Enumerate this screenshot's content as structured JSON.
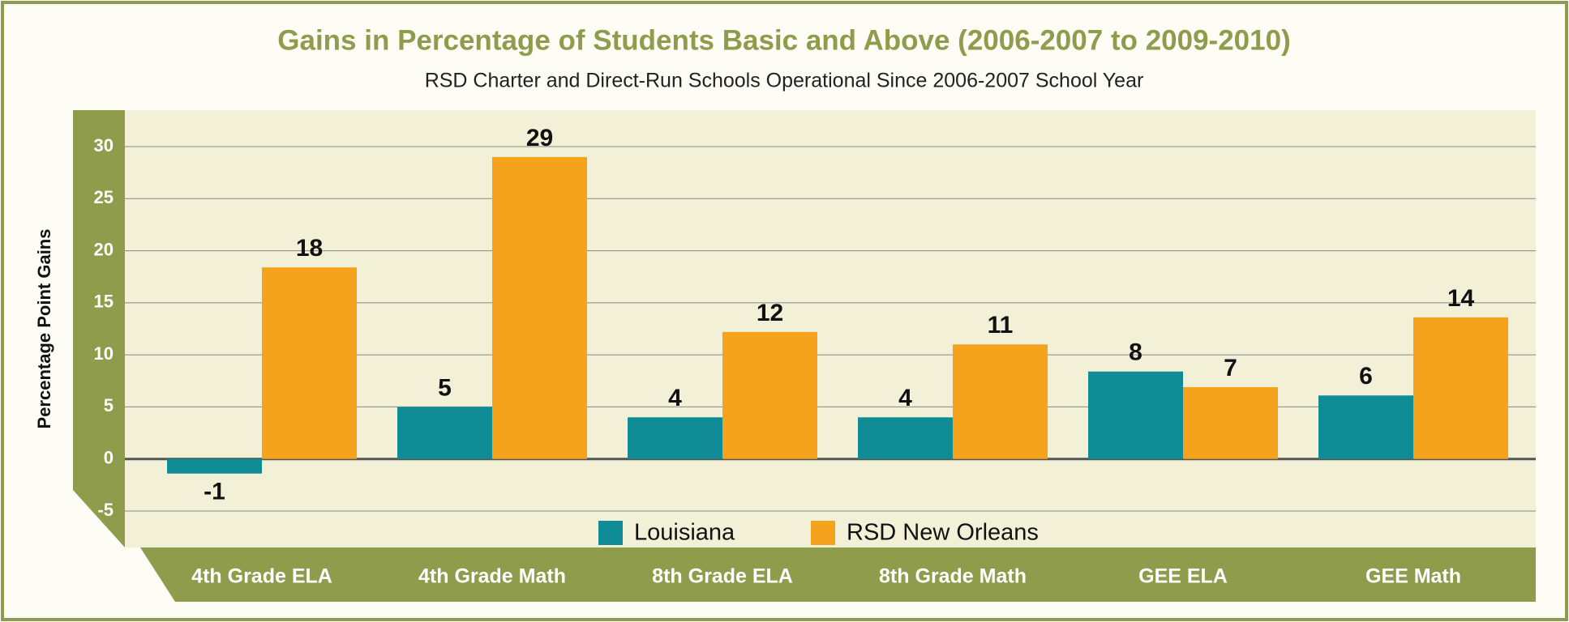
{
  "chart_data": {
    "type": "bar",
    "title": "Gains in Percentage of Students Basic and Above (2006-2007 to 2009-2010)",
    "subtitle": "RSD Charter and Direct-Run Schools Operational Since 2006-2007 School Year",
    "y_label": "Percentage Point Gains",
    "categories": [
      "4th Grade ELA",
      "4th Grade Math",
      "8th Grade ELA",
      "8th Grade Math",
      "GEE ELA",
      "GEE Math"
    ],
    "series": [
      {
        "name": "Louisiana",
        "color": "#0f8c96",
        "values": [
          -1.4,
          5,
          4,
          4,
          8.4,
          6.1
        ],
        "value_labels": [
          "-1",
          "5",
          "4",
          "4",
          "8",
          "6"
        ]
      },
      {
        "name": "RSD New Orleans",
        "color": "#f5a21d",
        "values": [
          18.4,
          29,
          12.2,
          11,
          6.9,
          13.6
        ],
        "value_labels": [
          "18",
          "29",
          "12",
          "11",
          "7",
          "14"
        ]
      }
    ],
    "ylim": [
      -8.5,
      33.5
    ],
    "yticks": [
      -5,
      0,
      5,
      10,
      15,
      20,
      25,
      30
    ],
    "grid": true
  }
}
